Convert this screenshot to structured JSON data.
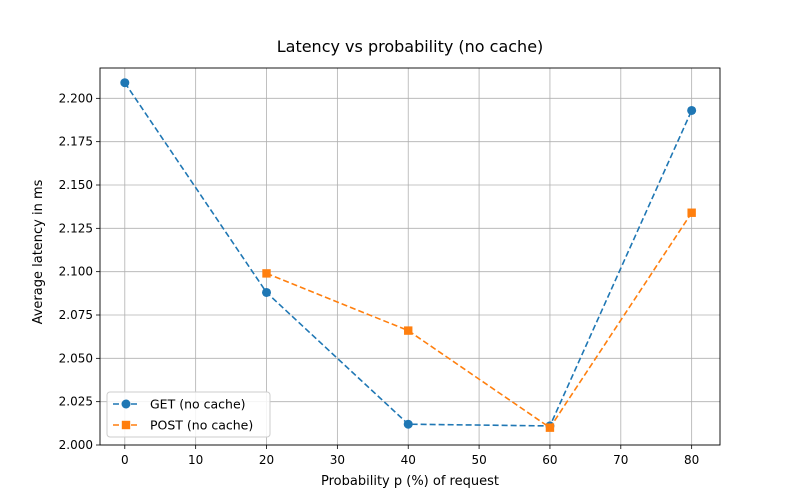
{
  "chart_data": {
    "type": "line",
    "title": "Latency vs probability (no cache)",
    "xlabel": "Probability p (%) of request",
    "ylabel": "Average latency in ms",
    "xlim": [
      -3.5,
      84
    ],
    "ylim": [
      2.0,
      2.2175
    ],
    "xticks": [
      0,
      10,
      20,
      30,
      40,
      50,
      60,
      70,
      80
    ],
    "yticks": [
      2.0,
      2.025,
      2.05,
      2.075,
      2.1,
      2.125,
      2.15,
      2.175,
      2.2
    ],
    "ytick_labels": [
      "2.000",
      "2.025",
      "2.050",
      "2.075",
      "2.100",
      "2.125",
      "2.150",
      "2.175",
      "2.200"
    ],
    "grid": true,
    "legend_position": "lower-left",
    "series": [
      {
        "name": "GET (no cache)",
        "color": "#1f77b4",
        "marker": "circle",
        "line": "dashed",
        "points": [
          {
            "x": 0,
            "y": 2.209
          },
          {
            "x": 20,
            "y": 2.088
          },
          {
            "x": 40,
            "y": 2.012
          },
          {
            "x": 60,
            "y": 2.011
          },
          {
            "x": 80,
            "y": 2.193
          }
        ]
      },
      {
        "name": "POST (no cache)",
        "color": "#ff7f0e",
        "marker": "square",
        "line": "dashed",
        "points": [
          {
            "x": 20,
            "y": 2.099
          },
          {
            "x": 40,
            "y": 2.066
          },
          {
            "x": 60,
            "y": 2.01
          },
          {
            "x": 80,
            "y": 2.134
          }
        ]
      }
    ]
  }
}
